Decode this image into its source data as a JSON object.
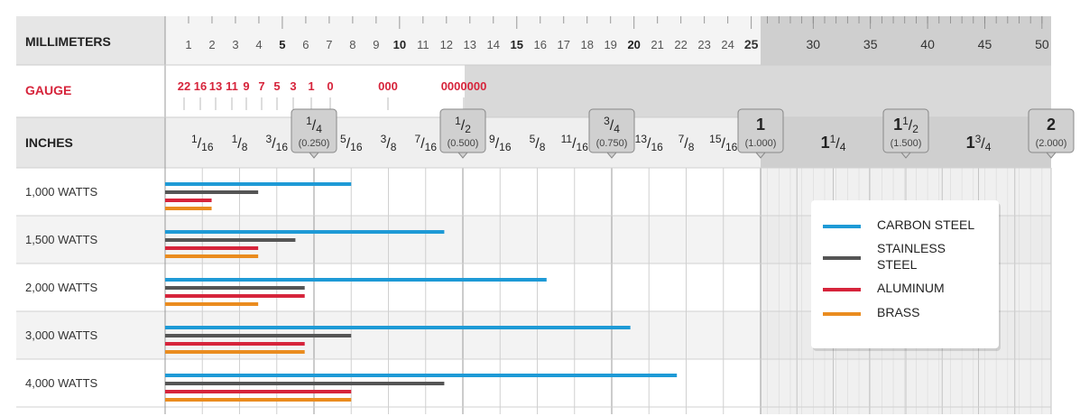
{
  "chart_data": {
    "type": "bar",
    "orientation": "horizontal",
    "header_rows": {
      "millimeters_label": "MILLIMETERS",
      "gauge_label": "GAUGE",
      "inches_label": "INCHES"
    },
    "mm_ticks": [
      "1",
      "2",
      "3",
      "4",
      "5",
      "6",
      "7",
      "8",
      "9",
      "10",
      "11",
      "12",
      "13",
      "14",
      "15",
      "16",
      "17",
      "18",
      "19",
      "20",
      "21",
      "22",
      "23",
      "24",
      "25",
      "30",
      "35",
      "40",
      "45",
      "50"
    ],
    "mm_major": [
      "5",
      "10",
      "15",
      "20",
      "25"
    ],
    "gauge_ticks": [
      "22",
      "16",
      "13",
      "11",
      "9",
      "7",
      "5",
      "3",
      "1",
      "0",
      "000",
      "0000000"
    ],
    "inch_ticks": [
      {
        "num": "1",
        "den": "16",
        "value": 0.0625
      },
      {
        "num": "1",
        "den": "8",
        "value": 0.125
      },
      {
        "num": "3",
        "den": "16",
        "value": 0.1875
      },
      {
        "num": "1",
        "den": "4",
        "value": 0.25,
        "decimal": "(0.250)"
      },
      {
        "num": "5",
        "den": "16",
        "value": 0.3125
      },
      {
        "num": "3",
        "den": "8",
        "value": 0.375
      },
      {
        "num": "7",
        "den": "16",
        "value": 0.4375
      },
      {
        "num": "1",
        "den": "2",
        "value": 0.5,
        "decimal": "(0.500)"
      },
      {
        "num": "9",
        "den": "16",
        "value": 0.5625
      },
      {
        "num": "5",
        "den": "8",
        "value": 0.625
      },
      {
        "num": "11",
        "den": "16",
        "value": 0.6875
      },
      {
        "num": "3",
        "den": "4",
        "value": 0.75,
        "decimal": "(0.750)"
      },
      {
        "num": "13",
        "den": "16",
        "value": 0.8125
      },
      {
        "num": "7",
        "den": "8",
        "value": 0.875
      },
      {
        "num": "15",
        "den": "16",
        "value": 0.9375
      },
      {
        "whole": "1",
        "value": 1.0,
        "decimal": "(1.000)"
      },
      {
        "whole": "1",
        "num": "1",
        "den": "4",
        "value": 1.25
      },
      {
        "whole": "1",
        "num": "1",
        "den": "2",
        "value": 1.5,
        "decimal": "(1.500)"
      },
      {
        "whole": "1",
        "num": "3",
        "den": "4",
        "value": 1.75
      },
      {
        "whole": "2",
        "value": 2.0,
        "decimal": "(2.000)"
      }
    ],
    "categories": [
      "1,000 WATTS",
      "1,500 WATTS",
      "2,000 WATTS",
      "3,000 WATTS",
      "4,000 WATTS"
    ],
    "x_unit": "inches",
    "series": [
      {
        "name": "CARBON STEEL",
        "color": "#1e9ad6",
        "values": [
          0.3125,
          0.4688,
          0.6406,
          0.7813,
          0.8594
        ]
      },
      {
        "name": "STAINLESS STEEL",
        "color": "#555555",
        "values": [
          0.1563,
          0.2188,
          0.2344,
          0.3125,
          0.4688
        ]
      },
      {
        "name": "ALUMINUM",
        "color": "#d6243b",
        "values": [
          0.0781,
          0.1563,
          0.2344,
          0.2344,
          0.3125
        ]
      },
      {
        "name": "BRASS",
        "color": "#ea8c1f",
        "values": [
          0.0781,
          0.1563,
          0.1563,
          0.2344,
          0.3125
        ]
      }
    ],
    "legend_labels": [
      "CARBON STEEL",
      "STAINLESS",
      "STEEL",
      "ALUMINUM",
      "BRASS"
    ],
    "legend_position": "right"
  }
}
